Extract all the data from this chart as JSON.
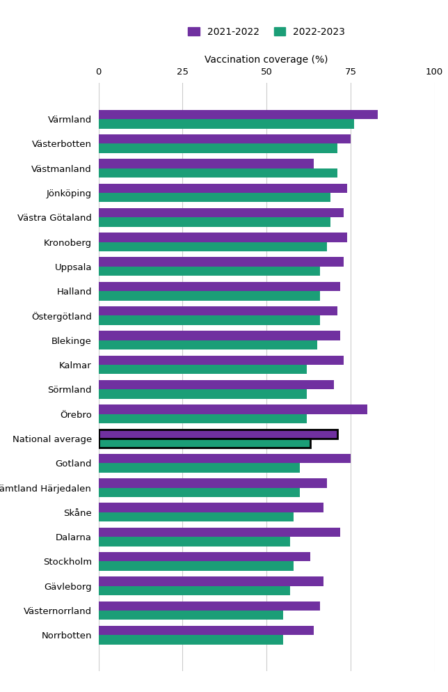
{
  "categories": [
    "Värmland",
    "Västerbotten",
    "Västmanland",
    "Jönköping",
    "Västra Götaland",
    "Kronoberg",
    "Uppsala",
    "Halland",
    "Östergötland",
    "Blekinge",
    "Kalmar",
    "Sörmland",
    "Örebro",
    "National average",
    "Gotland",
    "Jämtland Härjedalen",
    "Skåne",
    "Dalarna",
    "Stockholm",
    "Gävleborg",
    "Västernorrland",
    "Norrbotten"
  ],
  "values_2021_2022": [
    83,
    75,
    64,
    74,
    73,
    74,
    73,
    72,
    71,
    72,
    73,
    70,
    80,
    71,
    75,
    68,
    67,
    72,
    63,
    67,
    66,
    64
  ],
  "values_2022_2023": [
    76,
    71,
    71,
    69,
    69,
    68,
    66,
    66,
    66,
    65,
    62,
    62,
    62,
    63,
    60,
    60,
    58,
    57,
    58,
    57,
    55,
    55
  ],
  "color_2021": "#7030A0",
  "color_2022": "#1B9E77",
  "national_avg_edgecolor": "#000000",
  "xlabel": "Vaccination coverage (%)",
  "xlim": [
    0,
    100
  ],
  "xticks": [
    0,
    25,
    50,
    75,
    100
  ],
  "legend_labels": [
    "2021-2022",
    "2022-2023"
  ],
  "bar_height": 0.38,
  "figsize": [
    6.44,
    9.94
  ],
  "dpi": 100
}
